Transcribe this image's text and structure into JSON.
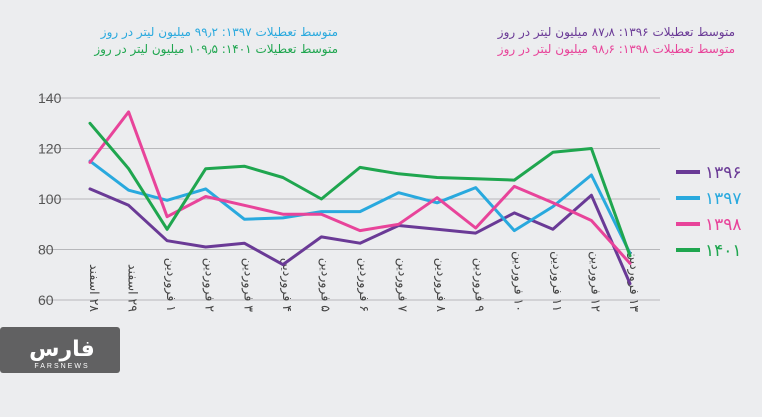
{
  "header": {
    "averages": [
      {
        "text": "متوسط تعطیلات ۱۳۹۶: ۸۷٫۸ میلیون لیتر در روز",
        "color": "#6a3a96"
      },
      {
        "text": "متوسط تعطیلات ۱۳۹۷: ۹۹٫۲ میلیون لیتر در روز",
        "color": "#29a9de"
      },
      {
        "text": "متوسط تعطیلات ۱۳۹۸: ۹۸٫۶ میلیون لیتر در روز",
        "color": "#e8449a"
      },
      {
        "text": "متوسط تعطیلات ۱۴۰۱: ۱۰۹٫۵ میلیون لیتر در روز",
        "color": "#1fa64f"
      }
    ]
  },
  "watermark": {
    "brand": "فارس",
    "sub": "FARSNEWS"
  },
  "chart_data": {
    "type": "line",
    "categories": [
      "۲۸ اسفند",
      "۲۹ اسفند",
      "۱ فروردین",
      "۲ فروردین",
      "۳ فروردین",
      "۴ فروردین",
      "۵ فروردین",
      "۶ فروردین",
      "۷ فروردین",
      "۸ فروردین",
      "۹ فروردین",
      "۱۰ فروردین",
      "۱۱ فروردین",
      "۱۲ فروردین",
      "۱۳ فروردین"
    ],
    "ylim": [
      60,
      140
    ],
    "yticks": [
      60,
      80,
      100,
      120,
      140
    ],
    "grid": "horizontal",
    "legend_position": "right",
    "series": [
      {
        "name": "۱۳۹۶",
        "color": "#6a3a96",
        "values": [
          104,
          97.5,
          83.5,
          81,
          82.5,
          74,
          85,
          82.5,
          89.5,
          88,
          86.5,
          94.5,
          88,
          101.5,
          66.5
        ]
      },
      {
        "name": "۱۳۹۷",
        "color": "#29a9de",
        "values": [
          115,
          103.5,
          99.5,
          104,
          92,
          92.5,
          95,
          95,
          102.5,
          98.5,
          104.5,
          87.5,
          97,
          109.5,
          78.5
        ]
      },
      {
        "name": "۱۳۹۸",
        "color": "#e8449a",
        "values": [
          114.5,
          134.5,
          93,
          101,
          97.5,
          94,
          94,
          87.5,
          90,
          100.5,
          88.5,
          105,
          98.5,
          91.5,
          74.5
        ]
      },
      {
        "name": "۱۴۰۱",
        "color": "#1fa64f",
        "values": [
          130,
          112,
          88,
          112,
          113,
          108.5,
          100,
          112.5,
          110,
          108.5,
          108,
          107.5,
          118.5,
          120,
          77.5
        ]
      }
    ]
  }
}
